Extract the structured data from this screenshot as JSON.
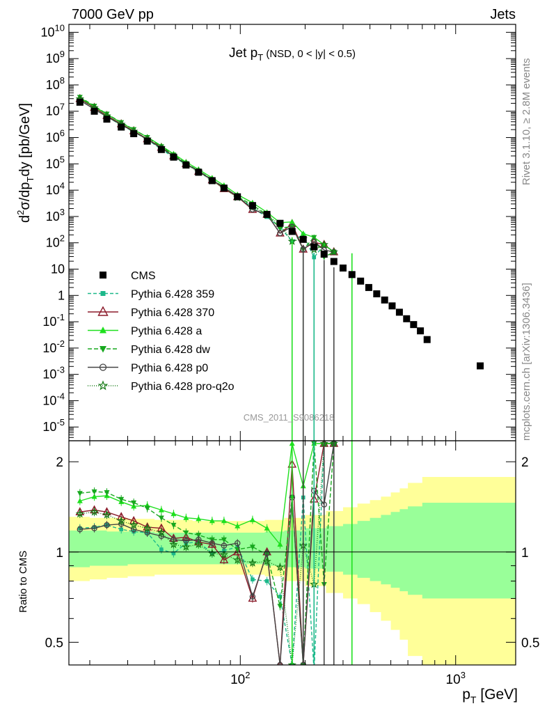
{
  "header": {
    "left": "7000 GeV pp",
    "right": "Jets"
  },
  "side_labels": {
    "rivet": "Rivet 3.1.10, ≥ 2.8M events",
    "mcplots": "mcplots.cern.ch [arXiv:1306.3436]"
  },
  "watermark": "CMS_2011_S9086218",
  "chart_data": {
    "type": "line",
    "title": "Jet pT (NSD,   0 < |y| < 0.5)",
    "xlabel": "pT [GeV]",
    "ylabel": "d²σ/dpT dy [pb/GeV]",
    "ratio_ylabel": "Ratio to CMS",
    "xscale": "log",
    "yscale": "log",
    "xlim": [
      16,
      1900
    ],
    "ylim": [
      3e-06,
      20000000000.0
    ],
    "ratio_ylim": [
      0.42,
      2.35
    ],
    "legend_position": "middle-left",
    "main_y_ticks": [
      "10^10",
      "10^9",
      "10^8",
      "10^7",
      "10^6",
      "10^5",
      "10^4",
      "10^3",
      "10^2",
      "10",
      "1",
      "10^-1",
      "10^-2",
      "10^-3",
      "10^-4",
      "10^-5"
    ],
    "ratio_y_ticks": [
      "0.5",
      "1",
      "2"
    ],
    "x_tick_labels": [
      "10^2",
      "10^3"
    ],
    "cms": {
      "name": "CMS",
      "color": "#000000",
      "x": [
        18,
        21,
        24,
        28,
        32,
        37,
        43,
        49,
        56,
        64,
        74,
        84,
        97,
        114,
        133,
        153,
        174,
        196,
        220,
        245,
        272,
        300,
        330,
        362,
        395,
        430,
        468,
        507,
        548,
        592,
        638,
        686,
        737,
        1300
      ],
      "y": [
        22000000.0,
        10000000.0,
        5000000.0,
        2500000.0,
        1400000.0,
        730000.0,
        350000.0,
        180000.0,
        90000.0,
        48000.0,
        23000.0,
        12000.0,
        5600.0,
        2600.0,
        1200.0,
        550.0,
        270.0,
        135.0,
        70,
        37,
        19.5,
        11,
        6.2,
        3.5,
        2.0,
        1.15,
        0.67,
        0.4,
        0.23,
        0.13,
        0.078,
        0.045,
        0.021,
        0.0021
      ]
    },
    "band_green": {
      "x": [
        16,
        20,
        24,
        30,
        40,
        60,
        80,
        100,
        130,
        160,
        200,
        250,
        300,
        350,
        400,
        450,
        500,
        550,
        600,
        700,
        1900
      ],
      "up": [
        1.18,
        1.18,
        1.17,
        1.17,
        1.16,
        1.16,
        1.16,
        1.16,
        1.17,
        1.18,
        1.2,
        1.22,
        1.24,
        1.27,
        1.3,
        1.33,
        1.36,
        1.39,
        1.42,
        1.46,
        1.48
      ],
      "down": [
        0.89,
        0.9,
        0.9,
        0.91,
        0.91,
        0.91,
        0.91,
        0.91,
        0.9,
        0.89,
        0.88,
        0.86,
        0.84,
        0.82,
        0.8,
        0.78,
        0.76,
        0.74,
        0.72,
        0.7,
        0.69
      ]
    },
    "band_yellow": {
      "x": [
        16,
        20,
        24,
        30,
        40,
        60,
        80,
        100,
        130,
        160,
        200,
        250,
        300,
        350,
        400,
        450,
        500,
        550,
        600,
        700,
        1900
      ],
      "up": [
        1.31,
        1.3,
        1.3,
        1.29,
        1.28,
        1.27,
        1.27,
        1.27,
        1.28,
        1.3,
        1.33,
        1.37,
        1.41,
        1.45,
        1.49,
        1.53,
        1.58,
        1.63,
        1.7,
        1.78,
        1.85
      ],
      "down": [
        0.8,
        0.81,
        0.82,
        0.83,
        0.84,
        0.84,
        0.84,
        0.84,
        0.83,
        0.8,
        0.77,
        0.73,
        0.7,
        0.67,
        0.63,
        0.59,
        0.55,
        0.51,
        0.45,
        0.38,
        0.33
      ]
    },
    "series": [
      {
        "name": "Pythia 6.428 359",
        "color": "#1cb88a",
        "dash": "5,3",
        "marker": "square",
        "x": [
          18,
          21,
          24,
          28,
          32,
          37,
          43,
          49,
          56,
          64,
          74,
          84,
          97,
          114,
          133,
          153,
          174,
          196,
          220,
          245,
          272
        ],
        "ratio": [
          1.2,
          1.21,
          1.23,
          1.19,
          1.17,
          1.16,
          1.02,
          0.99,
          1.07,
          1.08,
          0.99,
          1.01,
          1.04,
          0.81,
          0.8,
          0.71,
          0.42,
          1.52,
          0.4,
          2.3,
          2.3
        ]
      },
      {
        "name": "Pythia 6.428 370",
        "color": "#8b1a2a",
        "dash": "",
        "marker": "triangle-open",
        "x": [
          18,
          21,
          24,
          28,
          32,
          37,
          43,
          49,
          56,
          64,
          74,
          84,
          97,
          114,
          133,
          153,
          174,
          196,
          220,
          245,
          272
        ],
        "ratio": [
          1.36,
          1.38,
          1.36,
          1.31,
          1.27,
          1.21,
          1.2,
          1.11,
          1.12,
          1.08,
          1.06,
          0.94,
          1.0,
          0.7,
          1.0,
          0.42,
          1.96,
          0.42,
          1.5,
          2.3,
          2.3
        ]
      },
      {
        "name": "Pythia 6.428 a",
        "color": "#1ee01e",
        "dash": "",
        "marker": "triangle",
        "x": [
          18,
          21,
          24,
          28,
          32,
          37,
          43,
          49,
          56,
          64,
          74,
          84,
          97,
          114,
          133,
          153,
          174,
          196,
          220,
          245,
          272
        ],
        "ratio": [
          1.48,
          1.53,
          1.54,
          1.47,
          1.42,
          1.43,
          1.38,
          1.34,
          1.3,
          1.29,
          1.27,
          1.27,
          1.22,
          1.28,
          1.2,
          1.06,
          2.3,
          1.66,
          2.3,
          2.3,
          2.3
        ]
      },
      {
        "name": "Pythia 6.428 dw",
        "color": "#17a81e",
        "dash": "6,3",
        "marker": "triangle-down",
        "x": [
          18,
          21,
          24,
          28,
          32,
          37,
          43,
          49,
          56,
          64,
          74,
          84,
          97,
          114,
          133,
          153,
          174,
          196,
          220,
          245,
          272
        ],
        "ratio": [
          1.57,
          1.59,
          1.58,
          1.5,
          1.46,
          1.4,
          1.3,
          1.23,
          1.16,
          1.14,
          1.1,
          1.1,
          1.02,
          1.04,
          0.98,
          0.66,
          1.52,
          0.42,
          2.3,
          0.78,
          2.3
        ]
      },
      {
        "name": "Pythia 6.428 p0",
        "color": "#444444",
        "dash": "",
        "marker": "circle-open",
        "x": [
          18,
          21,
          24,
          28,
          32,
          37,
          43,
          49,
          56,
          64,
          74,
          84,
          97,
          114,
          133,
          153,
          174,
          196,
          220,
          245,
          272
        ],
        "ratio": [
          1.19,
          1.2,
          1.23,
          1.24,
          1.19,
          1.16,
          1.13,
          1.1,
          1.09,
          1.1,
          1.07,
          1.05,
          1.07,
          0.71,
          0.99,
          0.42,
          1.52,
          0.42,
          1.6,
          1.44,
          2.3
        ]
      },
      {
        "name": "Pythia 6.428 pro-q2o",
        "color": "#157a15",
        "dash": "1,2",
        "marker": "star",
        "x": [
          18,
          21,
          24,
          28,
          32,
          37,
          43,
          49,
          56,
          64,
          74,
          84,
          97,
          114,
          133,
          153,
          174,
          196,
          220,
          245,
          272
        ],
        "ratio": [
          1.34,
          1.36,
          1.33,
          1.27,
          1.23,
          1.2,
          1.16,
          1.06,
          1.04,
          1.06,
          0.99,
          0.98,
          0.94,
          0.92,
          0.93,
          0.89,
          0.42,
          1.05,
          0.78,
          2.3,
          2.3
        ]
      }
    ]
  }
}
